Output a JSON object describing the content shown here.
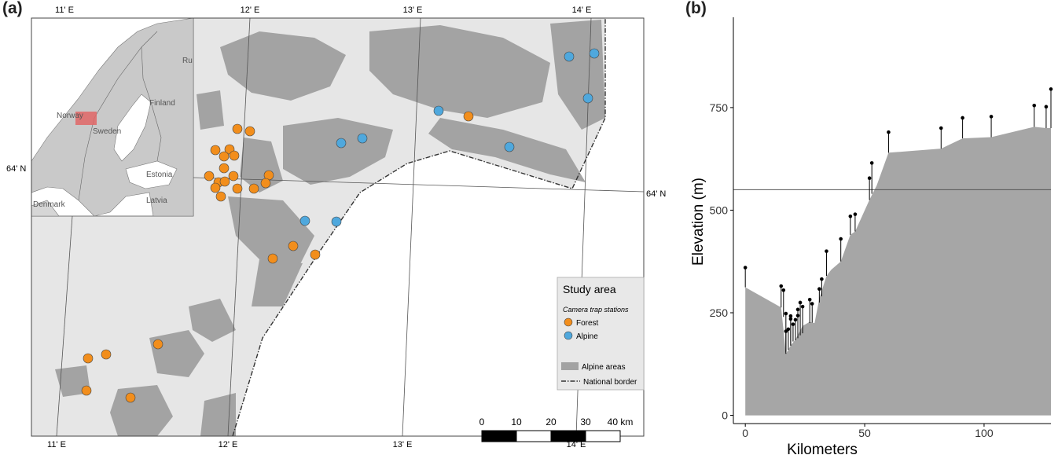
{
  "panels": {
    "a": "(a)",
    "b": "(b)"
  },
  "map": {
    "lon_labels_top": [
      "11' E",
      "12' E",
      "13' E",
      "14' E"
    ],
    "lon_labels_bottom": [
      "11' E",
      "12' E",
      "13' E",
      "14' E"
    ],
    "lat_label_left": "64' N",
    "lat_label_right": "64' N",
    "inset_labels": [
      "Norway",
      "Sweden",
      "Finland",
      "Ru",
      "Estonia",
      "Latvia",
      "Denmark"
    ],
    "scalebar": {
      "ticks": [
        "0",
        "10",
        "20",
        "30",
        "40 km"
      ]
    },
    "legend": {
      "title": "Study area",
      "subtitle": "Camera trap stations",
      "forest": "Forest",
      "alpine": "Alpine",
      "alpine_areas": "Alpine areas",
      "border": "National border"
    },
    "colors": {
      "forest": "#f28e1c",
      "alpine": "#4fa8dd",
      "alpine_area": "#9c9c9c",
      "terrain": "#e4e4e4",
      "inset_highlight": "#e06666"
    },
    "forest_count": 26,
    "alpine_count": 10
  },
  "chart_data": {
    "type": "area",
    "xlabel": "Kilometers",
    "ylabel": "Elevation (m)",
    "xlim": [
      -5,
      128
    ],
    "ylim": [
      -20,
      970
    ],
    "xticks": [
      0,
      50,
      100
    ],
    "yticks": [
      0,
      250,
      500,
      750
    ],
    "reference_line": 550,
    "profile": [
      [
        0,
        312
      ],
      [
        15,
        263
      ],
      [
        17,
        150
      ],
      [
        19,
        170
      ],
      [
        21,
        185
      ],
      [
        24,
        218
      ],
      [
        27,
        228
      ],
      [
        29,
        225
      ],
      [
        31,
        285
      ],
      [
        34,
        340
      ],
      [
        36,
        355
      ],
      [
        40,
        375
      ],
      [
        44,
        440
      ],
      [
        46,
        448
      ],
      [
        52,
        525
      ],
      [
        55,
        560
      ],
      [
        60,
        640
      ],
      [
        82,
        650
      ],
      [
        91,
        675
      ],
      [
        103,
        678
      ],
      [
        121,
        703
      ],
      [
        126,
        700
      ],
      [
        128,
        700
      ]
    ],
    "stations": [
      [
        0,
        312,
        360
      ],
      [
        15,
        263,
        315
      ],
      [
        16,
        240,
        305
      ],
      [
        17,
        155,
        248
      ],
      [
        17,
        150,
        205
      ],
      [
        18,
        160,
        210
      ],
      [
        19,
        170,
        242
      ],
      [
        19,
        170,
        235
      ],
      [
        20,
        180,
        222
      ],
      [
        21,
        183,
        233
      ],
      [
        22,
        188,
        258
      ],
      [
        22,
        190,
        243
      ],
      [
        23,
        195,
        275
      ],
      [
        24,
        200,
        265
      ],
      [
        27,
        225,
        282
      ],
      [
        28,
        226,
        272
      ],
      [
        31,
        275,
        308
      ],
      [
        32,
        290,
        332
      ],
      [
        34,
        340,
        400
      ],
      [
        40,
        375,
        430
      ],
      [
        44,
        440,
        485
      ],
      [
        46,
        448,
        490
      ],
      [
        52,
        525,
        578
      ],
      [
        53,
        540,
        615
      ],
      [
        60,
        640,
        690
      ],
      [
        82,
        650,
        700
      ],
      [
        91,
        675,
        725
      ],
      [
        103,
        678,
        728
      ],
      [
        121,
        703,
        755
      ],
      [
        126,
        700,
        752
      ],
      [
        128,
        700,
        795
      ]
    ]
  }
}
